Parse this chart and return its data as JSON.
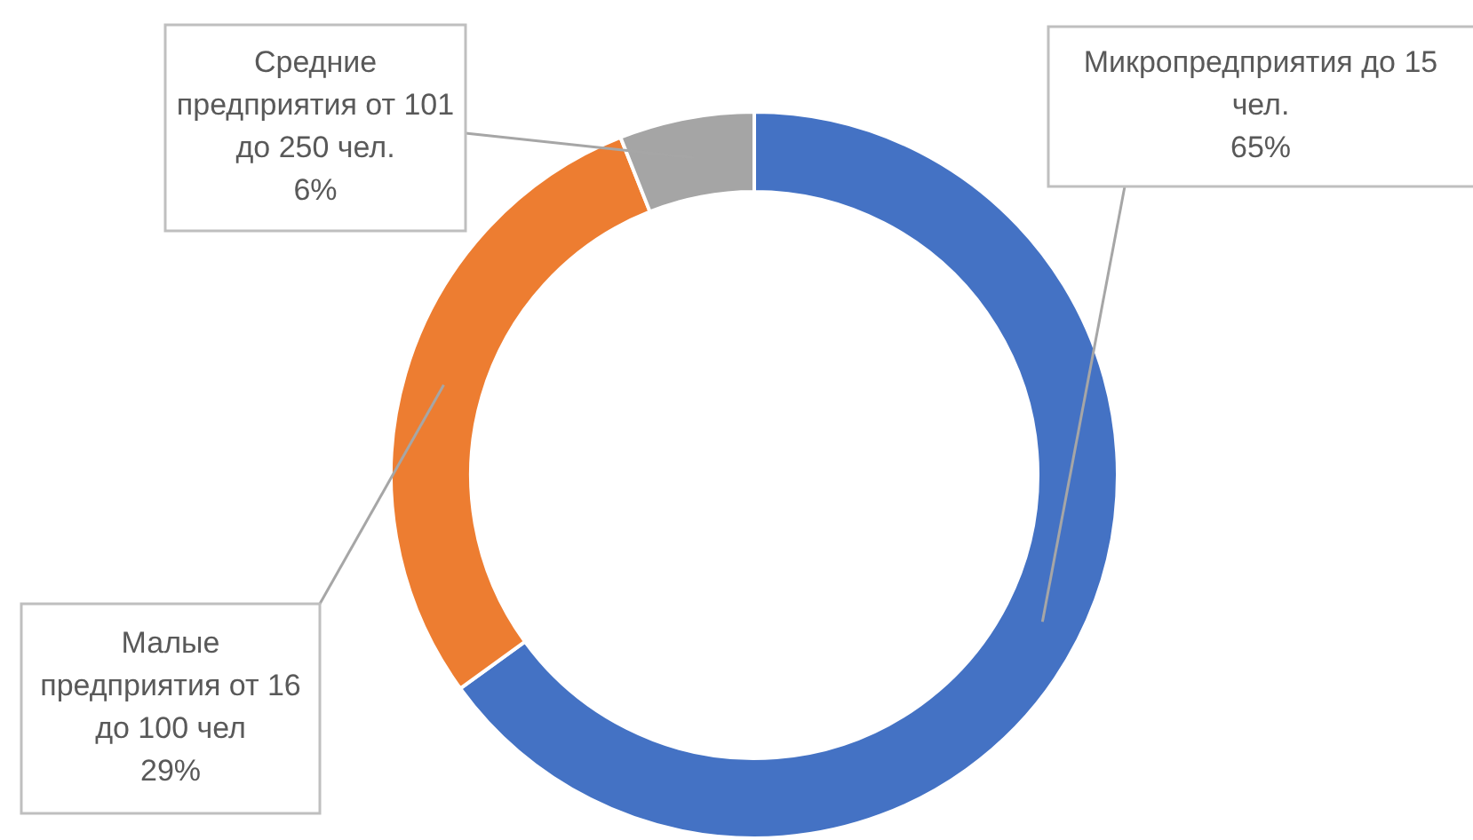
{
  "chart_data": {
    "type": "donut",
    "categories": [
      "Микропредприятия до 15 чел.",
      "Малые предприятия от 16 до 100 чел",
      "Средние предприятия от 101 до 250 чел."
    ],
    "values": [
      65,
      29,
      6
    ],
    "colors": [
      "#4472c4",
      "#ed7d31",
      "#a5a5a5"
    ],
    "value_labels": [
      "65%",
      "29%",
      "6%"
    ],
    "legend": false
  }
}
